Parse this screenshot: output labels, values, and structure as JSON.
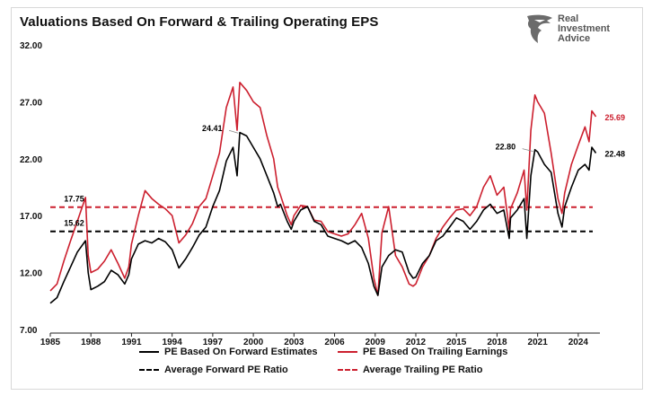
{
  "header": {
    "title": "Valuations  Based On Forward & Trailing Operating EPS",
    "logo_lines": [
      "Real",
      "Investment",
      "Advice"
    ]
  },
  "chart_data": {
    "type": "line",
    "title": "Valuations  Based On Forward & Trailing Operating EPS",
    "xlabel": "",
    "ylabel": "",
    "xlim": [
      1985,
      2025.6
    ],
    "ylim": [
      7,
      32
    ],
    "y_ticks": [
      "7.00",
      "12.00",
      "17.00",
      "22.00",
      "27.00",
      "32.00"
    ],
    "x_ticks": [
      "1985",
      "1988",
      "1991",
      "1994",
      "1997",
      "2000",
      "2003",
      "2006",
      "2009",
      "2012",
      "2015",
      "2018",
      "2021",
      "2024"
    ],
    "grid": false,
    "legend_position": "bottom",
    "colors": {
      "forward": "#000000",
      "trailing": "#cc1f2e"
    },
    "series": [
      {
        "name": "PE Based On Forward Estimates",
        "x": [
          1985.0,
          1985.5,
          1986.0,
          1986.5,
          1987.0,
          1987.6,
          1987.8,
          1988.0,
          1988.5,
          1989.0,
          1989.5,
          1990.0,
          1990.5,
          1990.8,
          1991.0,
          1991.5,
          1992.0,
          1992.5,
          1993.0,
          1993.5,
          1994.0,
          1994.5,
          1995.0,
          1995.5,
          1996.0,
          1996.5,
          1997.0,
          1997.5,
          1998.0,
          1998.5,
          1998.8,
          1999.0,
          1999.5,
          2000.0,
          2000.5,
          2001.0,
          2001.5,
          2001.8,
          2002.0,
          2002.5,
          2002.8,
          2003.0,
          2003.5,
          2004.0,
          2004.5,
          2005.0,
          2005.5,
          2006.0,
          2006.5,
          2007.0,
          2007.5,
          2008.0,
          2008.5,
          2008.9,
          2009.2,
          2009.5,
          2010.0,
          2010.5,
          2011.0,
          2011.5,
          2011.8,
          2012.0,
          2012.5,
          2013.0,
          2013.5,
          2014.0,
          2014.5,
          2015.0,
          2015.5,
          2016.0,
          2016.5,
          2017.0,
          2017.5,
          2018.0,
          2018.5,
          2018.9,
          2019.0,
          2019.5,
          2020.0,
          2020.2,
          2020.5,
          2020.8,
          2021.0,
          2021.5,
          2022.0,
          2022.5,
          2022.8,
          2023.0,
          2023.5,
          2024.0,
          2024.5,
          2024.8,
          2025.0,
          2025.3
        ],
        "values": [
          9.3,
          9.8,
          11.2,
          12.5,
          13.8,
          14.8,
          12.0,
          10.5,
          10.8,
          11.2,
          12.2,
          11.8,
          11.0,
          11.8,
          13.2,
          14.5,
          14.8,
          14.6,
          15.0,
          14.7,
          14.0,
          12.4,
          13.2,
          14.2,
          15.3,
          16.0,
          17.8,
          19.2,
          21.8,
          23.0,
          20.5,
          24.3,
          24.0,
          23.0,
          22.0,
          20.5,
          19.0,
          17.8,
          18.0,
          16.5,
          15.8,
          16.5,
          17.5,
          17.8,
          16.5,
          16.2,
          15.2,
          15.0,
          14.8,
          14.5,
          14.8,
          14.2,
          12.8,
          10.8,
          10.0,
          12.5,
          13.5,
          14.0,
          13.8,
          12.0,
          11.5,
          11.6,
          12.8,
          13.5,
          14.8,
          15.2,
          16.0,
          16.8,
          16.5,
          15.8,
          16.5,
          17.5,
          18.0,
          17.2,
          17.5,
          15.0,
          16.8,
          17.5,
          18.5,
          15.0,
          20.5,
          22.8,
          22.6,
          21.5,
          20.8,
          17.2,
          16.0,
          17.8,
          19.5,
          21.0,
          21.5,
          21.0,
          23.0,
          22.5
        ]
      },
      {
        "name": "PE Based On Trailing Earnings",
        "x": [
          1985.0,
          1985.5,
          1986.0,
          1986.5,
          1987.0,
          1987.6,
          1987.8,
          1988.0,
          1988.5,
          1989.0,
          1989.5,
          1990.0,
          1990.5,
          1990.8,
          1991.0,
          1991.5,
          1992.0,
          1992.5,
          1993.0,
          1993.5,
          1994.0,
          1994.5,
          1995.0,
          1995.5,
          1996.0,
          1996.5,
          1997.0,
          1997.5,
          1998.0,
          1998.5,
          1998.8,
          1999.0,
          1999.5,
          2000.0,
          2000.5,
          2001.0,
          2001.5,
          2001.8,
          2002.0,
          2002.5,
          2002.8,
          2003.0,
          2003.5,
          2004.0,
          2004.5,
          2005.0,
          2005.5,
          2006.0,
          2006.5,
          2007.0,
          2007.5,
          2008.0,
          2008.5,
          2008.9,
          2009.2,
          2009.5,
          2010.0,
          2010.5,
          2011.0,
          2011.5,
          2011.8,
          2012.0,
          2012.5,
          2013.0,
          2013.5,
          2014.0,
          2014.5,
          2015.0,
          2015.5,
          2016.0,
          2016.5,
          2017.0,
          2017.5,
          2018.0,
          2018.5,
          2018.9,
          2019.0,
          2019.5,
          2020.0,
          2020.2,
          2020.5,
          2020.8,
          2021.0,
          2021.5,
          2022.0,
          2022.5,
          2022.8,
          2023.0,
          2023.5,
          2024.0,
          2024.5,
          2024.8,
          2025.0,
          2025.3
        ],
        "values": [
          10.4,
          11.0,
          13.0,
          14.8,
          16.5,
          18.6,
          13.5,
          12.0,
          12.3,
          13.0,
          14.0,
          12.8,
          11.5,
          12.5,
          14.5,
          17.0,
          19.2,
          18.5,
          18.0,
          17.6,
          17.0,
          14.6,
          15.3,
          16.3,
          17.8,
          18.5,
          20.5,
          22.5,
          26.5,
          28.3,
          24.5,
          28.7,
          28.0,
          27.0,
          26.5,
          24.0,
          22.0,
          19.5,
          18.8,
          17.0,
          16.2,
          17.0,
          17.9,
          17.8,
          16.6,
          16.5,
          15.6,
          15.4,
          15.2,
          15.4,
          16.2,
          17.2,
          15.0,
          11.5,
          10.0,
          15.5,
          17.8,
          13.5,
          12.5,
          11.0,
          10.8,
          11.0,
          12.5,
          13.5,
          15.0,
          16.0,
          16.8,
          17.5,
          17.6,
          17.0,
          17.8,
          19.5,
          20.5,
          18.8,
          19.5,
          15.8,
          17.6,
          19.0,
          21.0,
          17.5,
          24.5,
          27.6,
          27.0,
          26.0,
          22.5,
          18.5,
          17.2,
          19.0,
          21.5,
          23.2,
          24.8,
          23.5,
          26.2,
          25.7
        ]
      },
      {
        "name": "Average Forward PE Ratio",
        "constant": 15.62
      },
      {
        "name": "Average Trailing PE Ratio",
        "constant": 17.75
      }
    ],
    "annotations": [
      {
        "text": "24.41",
        "x": 1999.0,
        "y": 24.41,
        "color": "#000000"
      },
      {
        "text": "17.75",
        "x": 1988.0,
        "y": 17.75,
        "color": "#000000"
      },
      {
        "text": "15.62",
        "x": 1988.0,
        "y": 15.62,
        "color": "#000000"
      },
      {
        "text": "22.80",
        "x": 2020.8,
        "y": 22.8,
        "color": "#000000"
      },
      {
        "text": "25.69",
        "x": 2025.3,
        "y": 25.69,
        "color": "#cc1f2e"
      },
      {
        "text": "22.48",
        "x": 2025.3,
        "y": 22.48,
        "color": "#000000"
      }
    ]
  }
}
